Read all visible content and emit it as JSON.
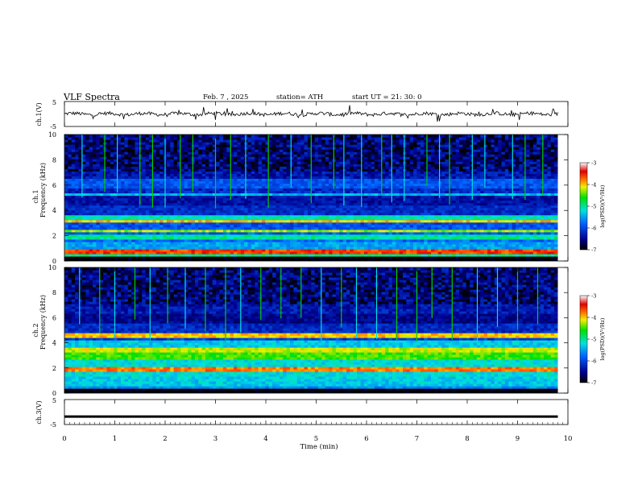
{
  "header": {
    "title": "VLF Spectra",
    "date": "Feb. 7 , 2025",
    "station": "station= ATH",
    "start": "start UT = 21: 30: 0"
  },
  "chart_data": [
    {
      "type": "line",
      "name": "ch1-waveform",
      "ylabel": "ch.1(V)",
      "y_ticks": [
        "5",
        "-5"
      ],
      "ylim": [
        -5,
        5
      ],
      "xlim": [
        0,
        10
      ],
      "mean_level": 0,
      "trace_color": "#000000"
    },
    {
      "type": "heatmap",
      "name": "ch1-spectrogram",
      "ylabel_channel": "ch.1",
      "ylabel": "Frequency (kHz)",
      "y_ticks": [
        "0",
        "2",
        "4",
        "6",
        "8",
        "10"
      ],
      "ylim": [
        0,
        10
      ],
      "xlim": [
        0,
        10
      ],
      "data_end_min": 9.8,
      "colorbar": {
        "label": "log(PSD)(V²/Hz)",
        "ticks": [
          "-3",
          "-4",
          "-5",
          "-6",
          "-7"
        ],
        "range": [
          -7,
          -3
        ]
      },
      "bands_khz": [
        {
          "f": 0.1,
          "w": 0.35,
          "v": -7
        },
        {
          "f": 0.5,
          "w": 0.1,
          "v": -5
        },
        {
          "f": 0.75,
          "w": 0.12,
          "v": -3.6
        },
        {
          "f": 1.3,
          "w": 0.25,
          "v": -5.5
        },
        {
          "f": 2.0,
          "w": 0.2,
          "v": -5
        },
        {
          "f": 2.4,
          "w": 0.15,
          "v": -4.3
        },
        {
          "f": 3.25,
          "w": 0.12,
          "v": -4
        },
        {
          "f": 3.5,
          "w": 0.15,
          "v": -5.1
        },
        {
          "f": 4.2,
          "w": 0.5,
          "v": -6.2
        },
        {
          "f": 4.8,
          "w": 0.3,
          "v": -6.4
        },
        {
          "f": 5.35,
          "w": 0.1,
          "v": -5.4
        },
        {
          "f": 6.2,
          "w": 0.4,
          "v": -5.9
        }
      ],
      "spikes_min": [
        0.35,
        0.8,
        1.05,
        1.5,
        1.75,
        2.0,
        2.3,
        2.55,
        3.0,
        3.3,
        3.6,
        4.05,
        4.5,
        4.9,
        5.35,
        5.55,
        5.9,
        6.3,
        6.5,
        6.75,
        7.2,
        7.45,
        7.65,
        8.1,
        8.35,
        8.9,
        9.15,
        9.5
      ]
    },
    {
      "type": "heatmap",
      "name": "ch2-spectrogram",
      "ylabel_channel": "ch.2",
      "ylabel": "Frequency (kHz)",
      "y_ticks": [
        "0",
        "2",
        "4",
        "6",
        "8",
        "10"
      ],
      "ylim": [
        0,
        10
      ],
      "xlim": [
        0,
        10
      ],
      "data_end_min": 9.8,
      "colorbar": {
        "label": "log(PSD)(V²/Hz)",
        "ticks": [
          "-3",
          "-4",
          "-5",
          "-6",
          "-7"
        ],
        "range": [
          -7,
          -3
        ]
      },
      "bands_khz": [
        {
          "f": 0.1,
          "w": 0.3,
          "v": -7
        },
        {
          "f": 0.5,
          "w": 0.12,
          "v": -5.6
        },
        {
          "f": 1.0,
          "w": 0.4,
          "v": -5.3
        },
        {
          "f": 1.6,
          "w": 0.3,
          "v": -5.2
        },
        {
          "f": 2.0,
          "w": 0.2,
          "v": -3.8
        },
        {
          "f": 2.5,
          "w": 0.3,
          "v": -5.2
        },
        {
          "f": 3.0,
          "w": 0.3,
          "v": -4.5
        },
        {
          "f": 3.5,
          "w": 0.2,
          "v": -4.2
        },
        {
          "f": 4.0,
          "w": 0.3,
          "v": -5.3
        },
        {
          "f": 4.6,
          "w": 0.15,
          "v": -4.0
        },
        {
          "f": 5.3,
          "w": 0.4,
          "v": -6.2
        },
        {
          "f": 6.0,
          "w": 0.4,
          "v": -6.5
        }
      ],
      "spikes_min": [
        0.3,
        0.7,
        1.0,
        1.4,
        1.7,
        2.05,
        2.4,
        2.8,
        3.2,
        3.5,
        3.9,
        4.3,
        4.7,
        5.1,
        5.5,
        5.8,
        6.2,
        6.6,
        7.0,
        7.3,
        7.7,
        8.2,
        8.6,
        9.0,
        9.4
      ]
    },
    {
      "type": "line",
      "name": "ch3-waveform",
      "ylabel": "ch.3(V)",
      "y_ticks": [
        "5",
        "-5"
      ],
      "ylim": [
        -5,
        5
      ],
      "xlim": [
        0,
        10
      ],
      "mean_level": -1.8,
      "trace_color": "#000000"
    }
  ],
  "x_axis": {
    "label": "Time (min)",
    "ticks": [
      "0",
      "1",
      "2",
      "3",
      "4",
      "5",
      "6",
      "7",
      "8",
      "9",
      "10"
    ]
  }
}
